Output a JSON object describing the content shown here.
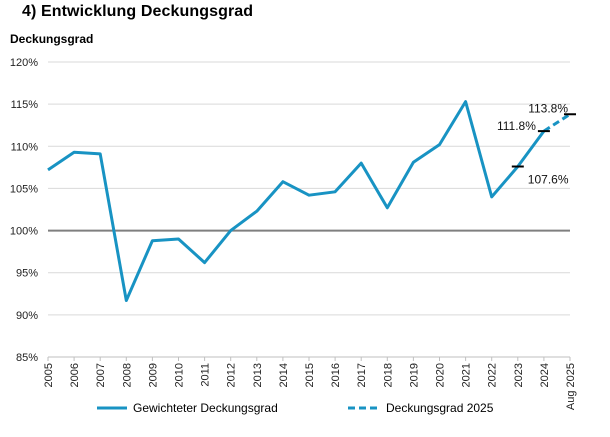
{
  "header": {
    "title": "4)  Entwicklung Deckungsgrad",
    "y_axis_title": "Deckungsgrad"
  },
  "colors": {
    "series": "#1893c3",
    "reference_line": "#7f7f7f",
    "grid": "#d9d9d9",
    "marker": "#000000"
  },
  "chart_data": {
    "type": "line",
    "title": "Entwicklung Deckungsgrad",
    "ylabel": "Deckungsgrad",
    "xlabel": "",
    "ylim": [
      85,
      120
    ],
    "yticks": [
      "85%",
      "90%",
      "95%",
      "100%",
      "105%",
      "110%",
      "115%",
      "120%"
    ],
    "categories": [
      "2005",
      "2006",
      "2007",
      "2008",
      "2009",
      "2010",
      "2011",
      "2012",
      "2013",
      "2014",
      "2015",
      "2016",
      "2017",
      "2018",
      "2019",
      "2020",
      "2021",
      "2022",
      "2023",
      "2024",
      "Aug 2025"
    ],
    "grid": "horizontal",
    "reference_line": 100,
    "series": [
      {
        "name": "Gewichteter Deckungsgrad",
        "style": "solid",
        "values": [
          107.2,
          109.3,
          109.1,
          91.7,
          98.8,
          99.0,
          96.2,
          100.0,
          102.3,
          105.8,
          104.2,
          104.6,
          108.0,
          102.7,
          108.1,
          110.2,
          115.3,
          104.0,
          107.6,
          111.8,
          null
        ]
      },
      {
        "name": "Deckungsgrad 2025",
        "style": "dashed",
        "values": [
          null,
          null,
          null,
          null,
          null,
          null,
          null,
          null,
          null,
          null,
          null,
          null,
          null,
          null,
          null,
          null,
          null,
          null,
          null,
          111.8,
          113.8
        ]
      }
    ],
    "annotations": [
      {
        "category": "2023",
        "value": 107.6,
        "text": "107.6%"
      },
      {
        "category": "2024",
        "value": 111.8,
        "text": "111.8%"
      },
      {
        "category": "Aug 2025",
        "value": 113.8,
        "text": "113.8%"
      }
    ]
  },
  "legend": {
    "items": [
      {
        "label": "Gewichteter Deckungsgrad",
        "style": "solid"
      },
      {
        "label": "Deckungsgrad 2025",
        "style": "dashed"
      }
    ]
  }
}
